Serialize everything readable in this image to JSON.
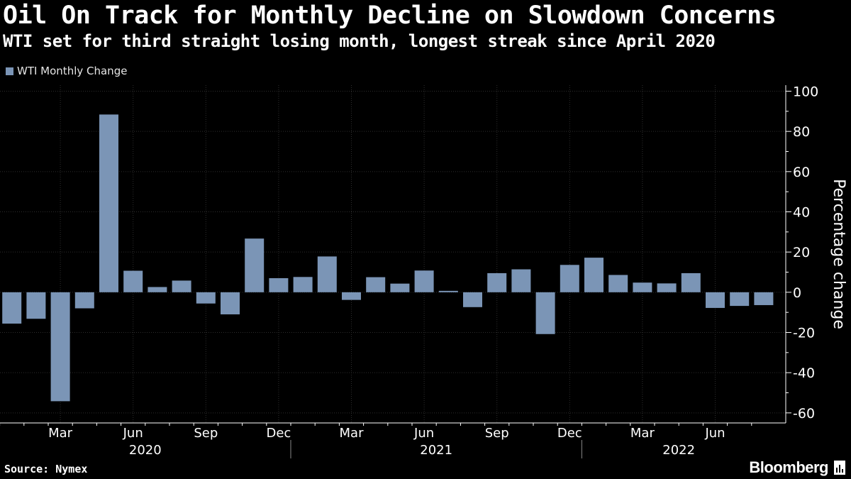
{
  "header": {
    "title": "Oil On Track for Monthly Decline on Slowdown Concerns",
    "subtitle": "WTI set for third straight losing month, longest streak since April 2020"
  },
  "colors": {
    "background": "#000000",
    "bar": "#7b95b6",
    "grid": "#2e2e2e",
    "axis": "#ffffff"
  },
  "footer": {
    "source": "Source: Nymex",
    "brand": "Bloomberg"
  },
  "chart_data": {
    "type": "bar",
    "title": "Oil On Track for Monthly Decline on Slowdown Concerns",
    "legend": {
      "entries": [
        "WTI Monthly Change"
      ],
      "placement": "top-left"
    },
    "ylabel": "Percentage change",
    "ylim": [
      -65,
      103
    ],
    "yticks": [
      100,
      80,
      60,
      40,
      20,
      0,
      -20,
      -40,
      -60
    ],
    "grid": true,
    "categories": [
      "Jan 2020",
      "Feb 2020",
      "Mar 2020",
      "Apr 2020",
      "May 2020",
      "Jun 2020",
      "Jul 2020",
      "Aug 2020",
      "Sep 2020",
      "Oct 2020",
      "Nov 2020",
      "Dec 2020",
      "Jan 2021",
      "Feb 2021",
      "Mar 2021",
      "Apr 2021",
      "May 2021",
      "Jun 2021",
      "Jul 2021",
      "Aug 2021",
      "Sep 2021",
      "Oct 2021",
      "Nov 2021",
      "Dec 2021",
      "Jan 2022",
      "Feb 2022",
      "Mar 2022",
      "Apr 2022",
      "May 2022",
      "Jun 2022",
      "Jul 2022",
      "Aug 2022"
    ],
    "series": [
      {
        "name": "WTI Monthly Change",
        "values": [
          -15.6,
          -13.2,
          -54.2,
          -8.0,
          88.4,
          10.7,
          2.6,
          5.8,
          -5.6,
          -11.0,
          26.7,
          7.0,
          7.6,
          17.8,
          -3.8,
          7.5,
          4.3,
          10.8,
          0.7,
          -7.4,
          9.5,
          11.4,
          -20.8,
          13.6,
          17.2,
          8.6,
          4.8,
          4.4,
          9.5,
          -7.8,
          -6.8,
          -6.4
        ]
      }
    ],
    "xtick_labels": [
      {
        "index": 2,
        "label": "Mar"
      },
      {
        "index": 5,
        "label": "Jun"
      },
      {
        "index": 8,
        "label": "Sep"
      },
      {
        "index": 11,
        "label": "Dec"
      },
      {
        "index": 14,
        "label": "Mar"
      },
      {
        "index": 17,
        "label": "Jun"
      },
      {
        "index": 20,
        "label": "Sep"
      },
      {
        "index": 23,
        "label": "Dec"
      },
      {
        "index": 26,
        "label": "Mar"
      },
      {
        "index": 29,
        "label": "Jun"
      }
    ],
    "year_labels": [
      {
        "label": "2020",
        "start": 0,
        "end": 11
      },
      {
        "label": "2021",
        "start": 12,
        "end": 23
      },
      {
        "label": "2022",
        "start": 24,
        "end": 31
      }
    ]
  }
}
